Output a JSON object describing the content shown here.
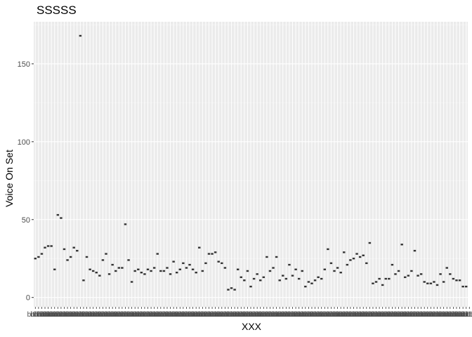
{
  "chart_data": {
    "type": "box",
    "title": "SSSSS",
    "xlabel": "XXX",
    "ylabel": "Voice On Set",
    "ylim": [
      -6,
      177
    ],
    "yticks": [
      0,
      50,
      100,
      150
    ],
    "grid": true,
    "legend": "none",
    "x_tick_labels": [
      "bitfiltt",
      "bitfiltt",
      "bitfiltt",
      "bitfiltt",
      "bitfiltt",
      "bitfiltt",
      "bitfiltt",
      "bitfiltt",
      "bitfiltt",
      "bitfiltt",
      "bitfiltt",
      "bitfiltt",
      "bitfiltt",
      "bitfiltt",
      "bitfiltt",
      "bitfiltt",
      "bitfiltt",
      "bitfiltt",
      "bitfiltt",
      "bitfiltt",
      "bitfiltt",
      "bitfiltt",
      "bitfiltt",
      "bitfiltt",
      "bitfiltt",
      "bitfiltt",
      "bitfiltt",
      "bitfiltt",
      "bitfiltt",
      "bitfiltt",
      "bitfiltt",
      "bitfiltt",
      "bitfiltt",
      "bitfiltt",
      "bitfiltt",
      "bitfiltt",
      "bitfiltt",
      "bitfiltt",
      "bitfiltt",
      "bitfiltt",
      "bitfiltt",
      "bitfiltt",
      "bitfiltt",
      "bitfiltt",
      "bitfiltt",
      "bitfiltt",
      "bitfiltt",
      "bitfiltt",
      "bitfiltt",
      "bitfiltt",
      "bitfiltt",
      "bitfiltt",
      "bitfiltt",
      "bitfiltt",
      "bitfiltt",
      "bitfiltt",
      "bitfiltt",
      "bitfiltt",
      "bitfiltt",
      "bitfiltt",
      "bitfiltt",
      "bitfiltt",
      "bitfiltt",
      "bitfiltt",
      "bitfiltt",
      "bitfiltt",
      "bitfiltt",
      "bitfiltt",
      "bitfiltt",
      "bitfiltt",
      "bitfiltt",
      "bitfiltt",
      "bitfiltt",
      "bitfiltt",
      "bitfiltt",
      "bitfiltt",
      "bitfiltt",
      "bitfiltt",
      "bitfiltt",
      "bitfiltt",
      "bitfiltt",
      "bitfiltt",
      "bitfiltt",
      "bitfiltt",
      "bitfiltt",
      "bitfiltt",
      "bitfiltt",
      "bitfiltt",
      "bitfiltt",
      "bitfiltt",
      "bitfiltt",
      "bitfiltt",
      "bitfiltt",
      "bitfiltt",
      "bitfiltt",
      "bitfiltt",
      "bitfiltt",
      "bitfiltt",
      "bitfiltt",
      "bitfiltt",
      "bitfiltt",
      "bitfiltt",
      "bitfiltt",
      "bitfiltt",
      "bitfiltt",
      "bitfiltt",
      "bitfiltt",
      "bitfiltt",
      "bitfiltt",
      "bitfiltt",
      "bitfiltt",
      "bitfiltt",
      "bitfiltt",
      "bitfiltt",
      "bitfiltt",
      "bitfiltt",
      "bitfiltt",
      "bitfiltt",
      "bitfiltt",
      "bitfiltt",
      "bitfiltt",
      "bitfiltt",
      "bitfiltt",
      "bitfiltt",
      "bitfiltt",
      "bitfiltt",
      "bitfiltt",
      "bitfiltt",
      "bitfiltt",
      "bitfiltt",
      "bitfiltt",
      "bitfiltt",
      "bitfiltt",
      "bitfiltt",
      "bitfiltt",
      "bitfiltt"
    ],
    "values": [
      25,
      26,
      28,
      32,
      33,
      33,
      18,
      53,
      51,
      31,
      24,
      26,
      32,
      30,
      168,
      11,
      26,
      18,
      17,
      16,
      14,
      24,
      28,
      15,
      21,
      17,
      19,
      19,
      47,
      24,
      10,
      17,
      18,
      16,
      15,
      18,
      17,
      19,
      28,
      17,
      17,
      19,
      15,
      23,
      16,
      18,
      22,
      19,
      21,
      18,
      16,
      32,
      17,
      22,
      28,
      28,
      29,
      23,
      22,
      19,
      5,
      6,
      5,
      18,
      13,
      11,
      17,
      7,
      12,
      15,
      11,
      13,
      26,
      17,
      19,
      26,
      11,
      14,
      12,
      21,
      14,
      18,
      12,
      17,
      7,
      10,
      9,
      11,
      13,
      12,
      18,
      31,
      22,
      17,
      19,
      16,
      29,
      21,
      24,
      25,
      28,
      26,
      27,
      22,
      35,
      9,
      10,
      12,
      8,
      12,
      12,
      21,
      15,
      17,
      34,
      13,
      14,
      17,
      30,
      14,
      15,
      10,
      9,
      9,
      10,
      8,
      15,
      10,
      19,
      15,
      12,
      11,
      11,
      7,
      7
    ]
  },
  "colors": {
    "panel": "#ebebeb",
    "grid_major": "#ffffff",
    "grid_minor": "#f5f5f5",
    "box": "#333333"
  }
}
